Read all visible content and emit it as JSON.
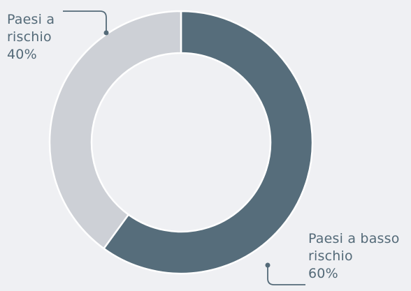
{
  "chart_data": {
    "type": "pie",
    "variant": "donut",
    "slices": [
      {
        "label": "Paesi a basso rischio",
        "value": 60,
        "percent_label": "60%",
        "color": "#566d7b"
      },
      {
        "label": "Paesi a rischio",
        "value": 40,
        "percent_label": "40%",
        "color": "#cdd0d6"
      }
    ],
    "start": "top (12 o'clock)",
    "direction": "clockwise",
    "annotations": [
      {
        "for": "Paesi a rischio",
        "lines": [
          "Paesi a",
          "rischio",
          "40%"
        ]
      },
      {
        "for": "Paesi a basso rischio",
        "lines": [
          "Paesi a basso",
          "rischio",
          "60%"
        ]
      }
    ],
    "colors": {
      "background": "#eff0f3",
      "label_text": "#546a78",
      "leader_line": "#546a78",
      "slice_border": "#ffffff"
    }
  }
}
